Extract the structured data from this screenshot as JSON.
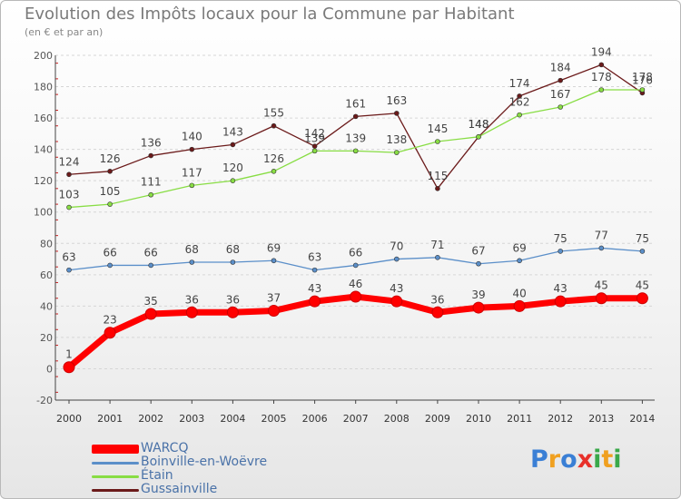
{
  "chart_data": {
    "type": "line",
    "title": "Evolution des Impôts locaux pour la Commune par Habitant",
    "subtitle": "(en € et par an)",
    "xlabel": "",
    "ylabel": "",
    "categories": [
      "2000",
      "2001",
      "2002",
      "2003",
      "2004",
      "2005",
      "2006",
      "2007",
      "2008",
      "2009",
      "2010",
      "2011",
      "2012",
      "2013",
      "2014"
    ],
    "ylim": [
      -20,
      200
    ],
    "yticks": [
      -20,
      0,
      20,
      40,
      60,
      80,
      100,
      120,
      140,
      160,
      180,
      200
    ],
    "grid": true,
    "legend_position": "bottom-left",
    "series": [
      {
        "name": "WARCQ",
        "color": "#ff0000",
        "values": [
          1,
          23,
          35,
          36,
          36,
          37,
          43,
          46,
          43,
          36,
          39,
          40,
          43,
          45,
          45
        ]
      },
      {
        "name": "Boinville-en-Woëvre",
        "color": "#5b8fc9",
        "values": [
          63,
          66,
          66,
          68,
          68,
          69,
          63,
          66,
          70,
          71,
          67,
          69,
          75,
          77,
          75
        ]
      },
      {
        "name": "Étain",
        "color": "#88dd44",
        "values": [
          103,
          105,
          111,
          117,
          120,
          126,
          139,
          139,
          138,
          145,
          148,
          162,
          167,
          178,
          178
        ]
      },
      {
        "name": "Gussainville",
        "color": "#6b1a1a",
        "values": [
          124,
          126,
          136,
          140,
          143,
          155,
          142,
          161,
          163,
          115,
          148,
          174,
          184,
          194,
          176
        ]
      }
    ]
  },
  "logo": {
    "letters": [
      {
        "ch": "P",
        "color": "#3a7fd5"
      },
      {
        "ch": "r",
        "color": "#f0a020"
      },
      {
        "ch": "o",
        "color": "#3a7fd5"
      },
      {
        "ch": "x",
        "color": "#e8302a"
      },
      {
        "ch": "i",
        "color": "#3aa84a"
      },
      {
        "ch": "t",
        "color": "#f0a020"
      },
      {
        "ch": "i",
        "color": "#3aa84a"
      }
    ]
  }
}
